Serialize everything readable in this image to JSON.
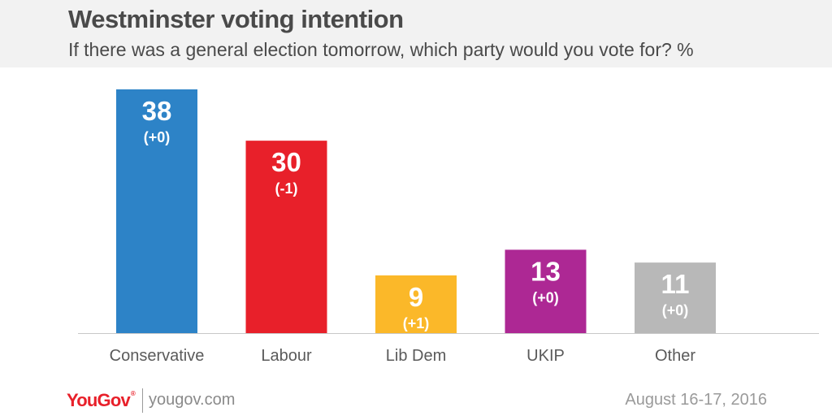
{
  "header": {
    "title": "Westminster voting intention",
    "subtitle": "If there was a general election tomorrow, which party would you vote for? %"
  },
  "footer": {
    "logo_text": "YouGov",
    "logo_mark": "®",
    "site": "yougov.com",
    "date": "August 16-17, 2016"
  },
  "chart_data": {
    "type": "bar",
    "title": "Westminster voting intention",
    "subtitle": "If there was a general election tomorrow, which party would you vote for? %",
    "categories": [
      "Conservative",
      "Labour",
      "Lib Dem",
      "UKIP",
      "Other"
    ],
    "values": [
      38,
      30,
      9,
      13,
      11
    ],
    "changes": [
      "(+0)",
      "(-1)",
      "(+1)",
      "(+0)",
      "(+0)"
    ],
    "colors": [
      "#2d83c7",
      "#e8202a",
      "#fbb829",
      "#ad2894",
      "#b8b8b8"
    ],
    "label_color": "#ffffff",
    "ylim": [
      0,
      38
    ],
    "grid": false,
    "legend": "none"
  }
}
